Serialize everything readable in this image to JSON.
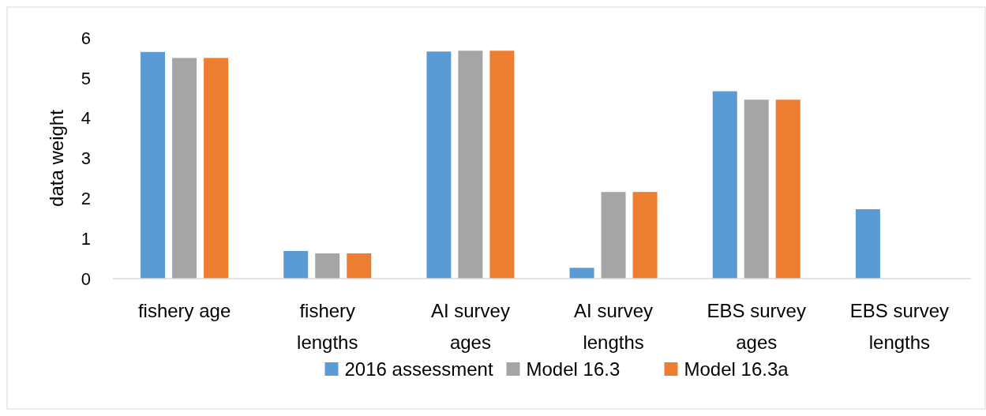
{
  "chart_data": {
    "type": "bar",
    "ylabel": "data weight",
    "categories": [
      "fishery age",
      "fishery lengths",
      "AI survey ages",
      "AI survey lengths",
      "EBS survey ages",
      "EBS survey lengths"
    ],
    "series": [
      {
        "name": "2016 assessment",
        "color": "#5b9bd5",
        "values": [
          5.65,
          0.69,
          5.66,
          0.27,
          4.67,
          1.73
        ]
      },
      {
        "name": "Model 16.3",
        "color": "#a5a5a5",
        "values": [
          5.5,
          0.63,
          5.68,
          2.16,
          4.46,
          0
        ]
      },
      {
        "name": "Model 16.3a",
        "color": "#ed7d31",
        "values": [
          5.5,
          0.63,
          5.68,
          2.16,
          4.46,
          0
        ]
      }
    ],
    "ylim": [
      0,
      6
    ],
    "yticks": [
      0,
      1,
      2,
      3,
      4,
      5,
      6
    ],
    "grid": false,
    "legend": "bottom"
  }
}
